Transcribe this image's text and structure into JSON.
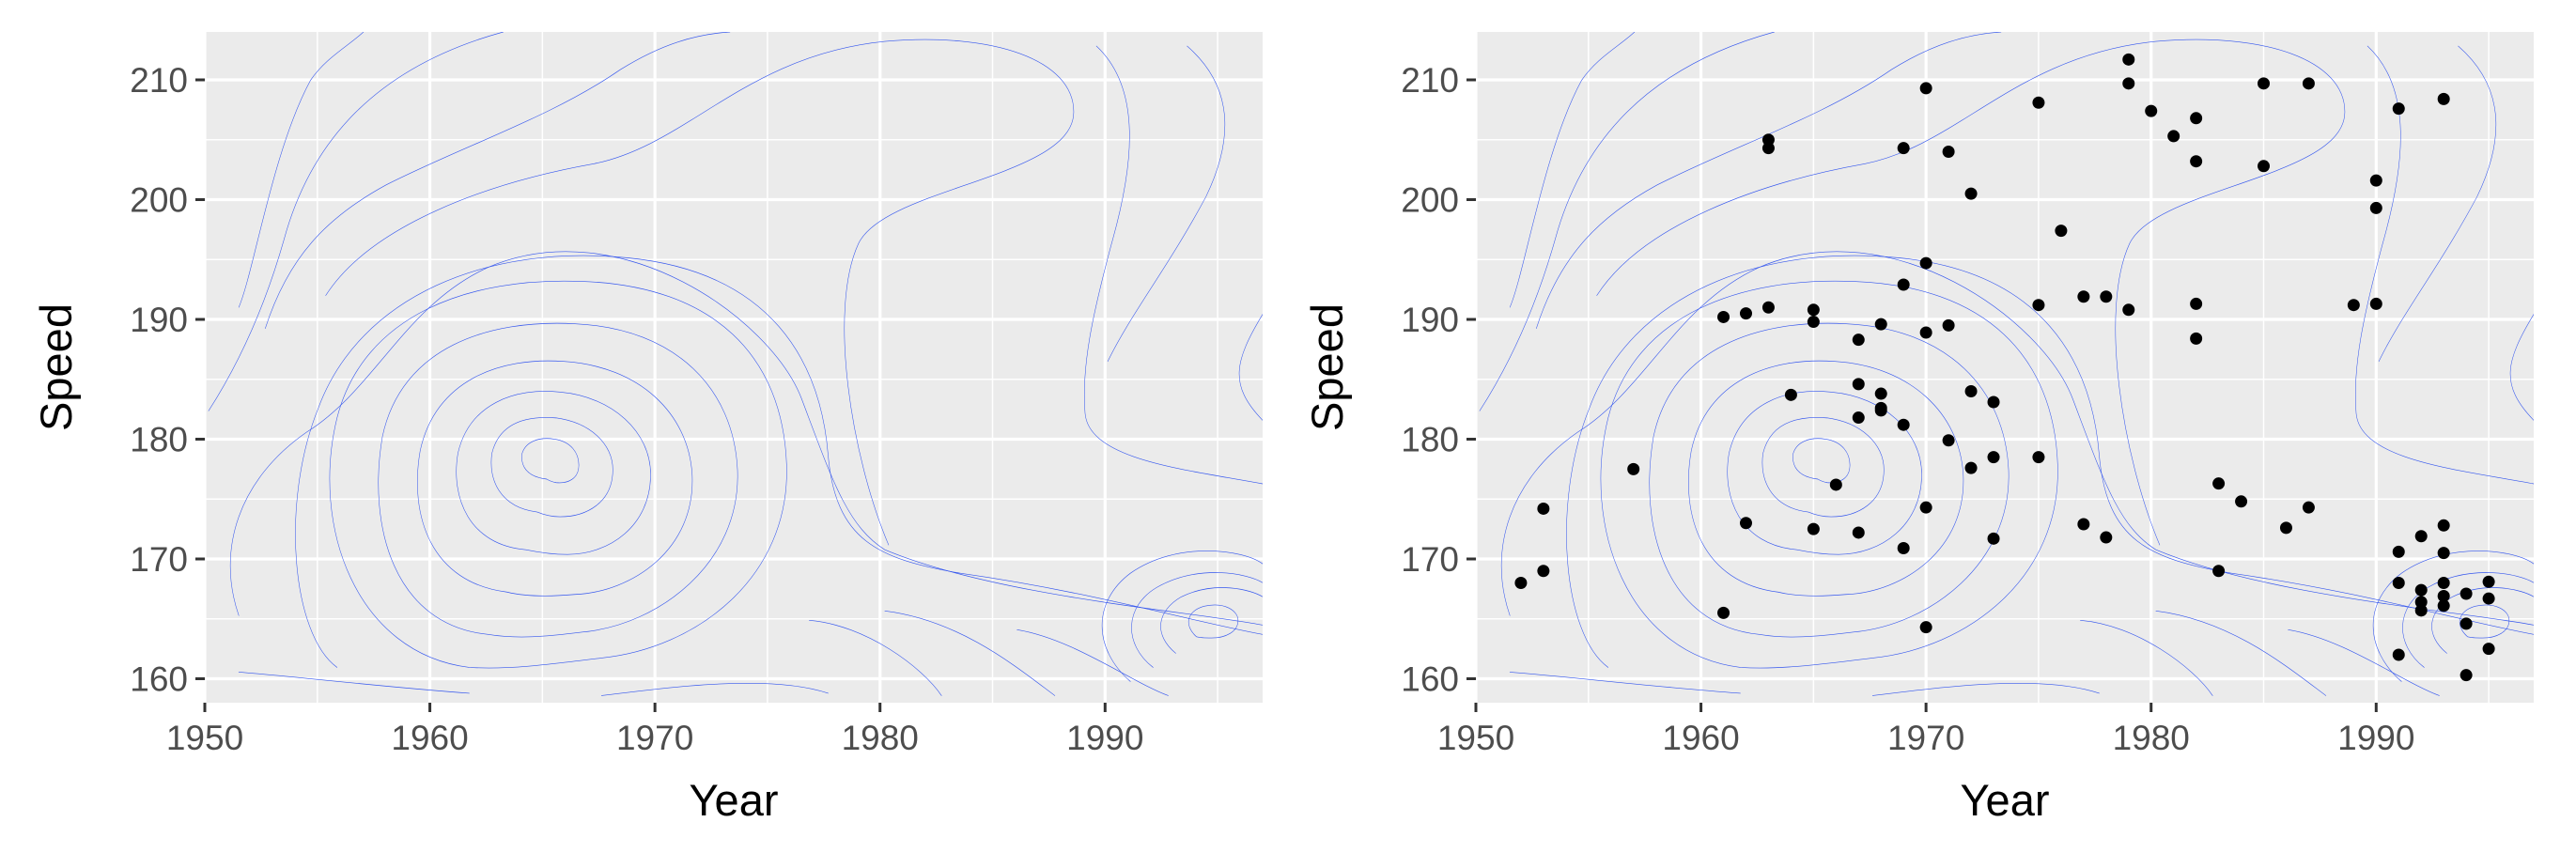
{
  "colors": {
    "panel_background": "#ebebeb",
    "grid": "#ffffff",
    "contour": "#3355ee",
    "points": "#000000",
    "tick_text": "#4d4d4d"
  },
  "chart_data": [
    {
      "type": "contour",
      "xlabel": "Year",
      "ylabel": "Speed",
      "xlim": [
        1950,
        1997
      ],
      "ylim": [
        158,
        214
      ],
      "xticks": [
        1950,
        1960,
        1970,
        1980,
        1990
      ],
      "yticks": [
        160,
        170,
        180,
        190,
        200,
        210
      ],
      "grid": true,
      "contour_style": "2D density contours of Speed vs Year",
      "show_points": false,
      "points": []
    },
    {
      "type": "scatter",
      "xlabel": "Year",
      "ylabel": "Speed",
      "xlim": [
        1950,
        1997
      ],
      "ylim": [
        158,
        214
      ],
      "xticks": [
        1950,
        1960,
        1970,
        1980,
        1990
      ],
      "yticks": [
        160,
        170,
        180,
        190,
        200,
        210
      ],
      "grid": true,
      "contour_style": "2D density contours of Speed vs Year",
      "show_points": true,
      "points": [
        [
          1952,
          168.0
        ],
        [
          1953,
          174.2
        ],
        [
          1953,
          169.0
        ],
        [
          1957,
          177.5
        ],
        [
          1961,
          190.2
        ],
        [
          1961,
          165.5
        ],
        [
          1962,
          190.5
        ],
        [
          1962,
          173.0
        ],
        [
          1963,
          205.0
        ],
        [
          1963,
          204.3
        ],
        [
          1963,
          191.0
        ],
        [
          1964,
          183.7
        ],
        [
          1965,
          190.8
        ],
        [
          1965,
          189.8
        ],
        [
          1965,
          172.5
        ],
        [
          1966,
          176.2
        ],
        [
          1967,
          188.3
        ],
        [
          1967,
          184.6
        ],
        [
          1967,
          181.8
        ],
        [
          1967,
          172.2
        ],
        [
          1968,
          189.6
        ],
        [
          1968,
          183.8
        ],
        [
          1968,
          182.4
        ],
        [
          1968,
          182.6
        ],
        [
          1969,
          204.3
        ],
        [
          1969,
          192.9
        ],
        [
          1969,
          181.2
        ],
        [
          1969,
          170.9
        ],
        [
          1970,
          209.3
        ],
        [
          1970,
          194.7
        ],
        [
          1970,
          188.9
        ],
        [
          1970,
          174.3
        ],
        [
          1970,
          164.3
        ],
        [
          1971,
          204.0
        ],
        [
          1971,
          189.5
        ],
        [
          1971,
          179.9
        ],
        [
          1972,
          200.5
        ],
        [
          1972,
          184.0
        ],
        [
          1972,
          177.6
        ],
        [
          1973,
          183.1
        ],
        [
          1973,
          178.5
        ],
        [
          1973,
          171.7
        ],
        [
          1975,
          208.1
        ],
        [
          1975,
          191.2
        ],
        [
          1975,
          178.5
        ],
        [
          1976,
          197.4
        ],
        [
          1977,
          191.9
        ],
        [
          1977,
          172.9
        ],
        [
          1978,
          191.9
        ],
        [
          1978,
          171.8
        ],
        [
          1979,
          190.8
        ],
        [
          1979,
          211.7
        ],
        [
          1979,
          209.7
        ],
        [
          1980,
          207.4
        ],
        [
          1981,
          205.3
        ],
        [
          1982,
          206.8
        ],
        [
          1982,
          203.2
        ],
        [
          1982,
          191.3
        ],
        [
          1982,
          188.4
        ],
        [
          1983,
          176.3
        ],
        [
          1983,
          169.0
        ],
        [
          1984,
          174.8
        ],
        [
          1985,
          209.7
        ],
        [
          1985,
          202.8
        ],
        [
          1986,
          172.6
        ],
        [
          1987,
          209.7
        ],
        [
          1987,
          174.3
        ],
        [
          1989,
          191.2
        ],
        [
          1990,
          201.6
        ],
        [
          1990,
          199.3
        ],
        [
          1990,
          191.3
        ],
        [
          1991,
          207.6
        ],
        [
          1991,
          170.6
        ],
        [
          1991,
          168.0
        ],
        [
          1991,
          162.0
        ],
        [
          1992,
          171.9
        ],
        [
          1992,
          167.4
        ],
        [
          1992,
          166.4
        ],
        [
          1992,
          165.7
        ],
        [
          1993,
          208.4
        ],
        [
          1993,
          172.8
        ],
        [
          1993,
          170.5
        ],
        [
          1993,
          168.0
        ],
        [
          1993,
          166.9
        ],
        [
          1993,
          166.1
        ],
        [
          1994,
          167.1
        ],
        [
          1994,
          164.6
        ],
        [
          1994,
          160.3
        ],
        [
          1995,
          168.1
        ],
        [
          1995,
          166.7
        ],
        [
          1995,
          162.5
        ]
      ]
    }
  ]
}
